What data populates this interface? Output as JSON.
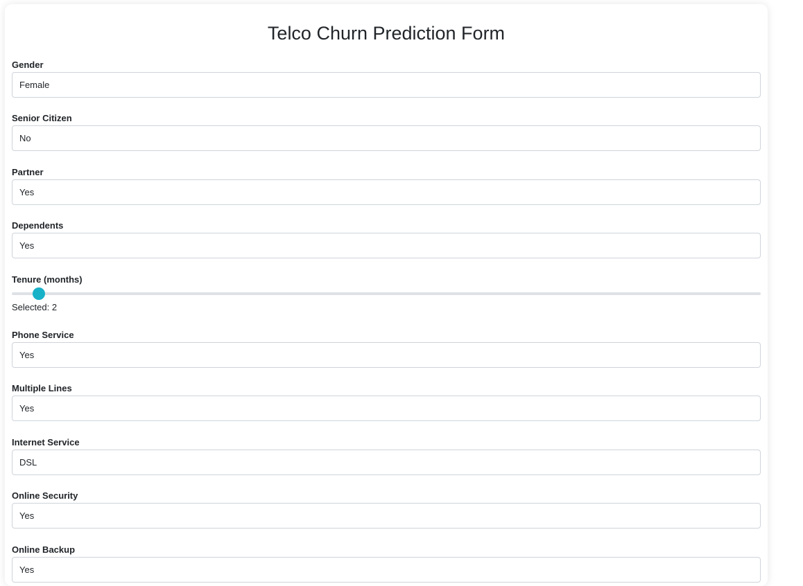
{
  "form": {
    "title": "Telco Churn Prediction Form",
    "fields": [
      {
        "label": "Gender",
        "value": "Female"
      },
      {
        "label": "Senior Citizen",
        "value": "No"
      },
      {
        "label": "Partner",
        "value": "Yes"
      },
      {
        "label": "Dependents",
        "value": "Yes"
      },
      {
        "label": "Phone Service",
        "value": "Yes"
      },
      {
        "label": "Multiple Lines",
        "value": "Yes"
      },
      {
        "label": "Internet Service",
        "value": "DSL"
      },
      {
        "label": "Online Security",
        "value": "Yes"
      },
      {
        "label": "Online Backup",
        "value": "Yes"
      }
    ],
    "tenure": {
      "label": "Tenure (months)",
      "selected_prefix": "Selected:",
      "value": 2,
      "max": 72,
      "accent_color": "#17b1c8"
    }
  }
}
